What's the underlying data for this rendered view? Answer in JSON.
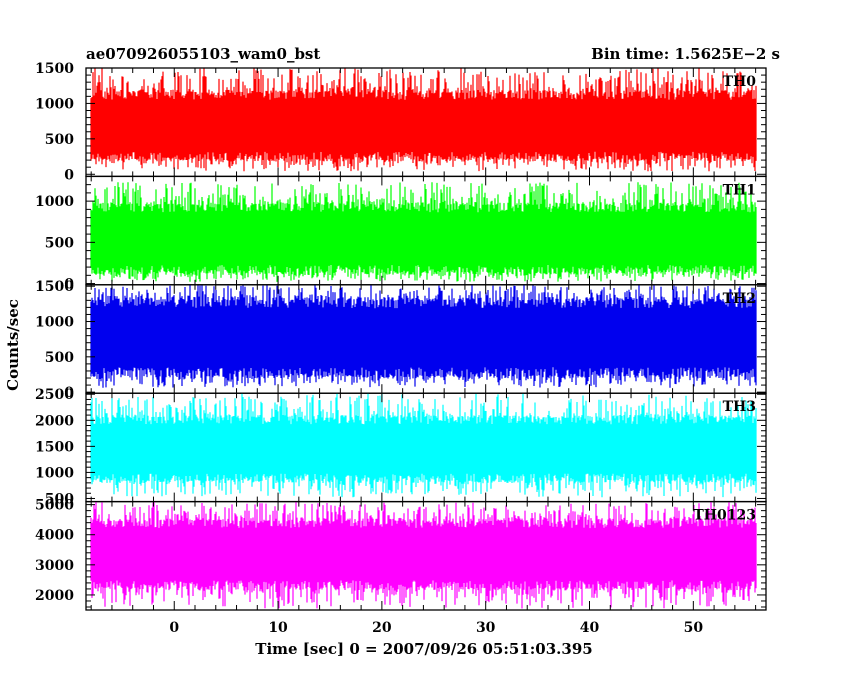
{
  "chart_data": {
    "type": "line",
    "title": "ae070926055103_wam0_bst",
    "subtitle": "Bin time: 1.5625E−2 s",
    "xlabel": "Time [sec] 0 = 2007/09/26 05:51:03.395",
    "ylabel": "Counts/sec",
    "xlim": [
      -8.5,
      57
    ],
    "x_ticks": [
      0,
      10,
      20,
      30,
      40,
      50
    ],
    "x_data_range": [
      -8,
      56
    ],
    "bin_time_s": 0.015625,
    "grid": false,
    "legend": "none",
    "panels": [
      {
        "name": "TH0",
        "color": "#ff0000",
        "ylim": [
          -30,
          1500
        ],
        "y_ticks": [
          0,
          500,
          1000,
          1500
        ],
        "typical_range": [
          220,
          1150
        ],
        "extreme_range": [
          40,
          1500
        ]
      },
      {
        "name": "TH1",
        "color": "#00ff00",
        "ylim": [
          -15,
          1300
        ],
        "y_ticks": [
          0,
          500,
          1000
        ],
        "typical_range": [
          140,
          950
        ],
        "extreme_range": [
          20,
          1230
        ]
      },
      {
        "name": "TH2",
        "color": "#0000ee",
        "ylim": [
          -15,
          1520
        ],
        "y_ticks": [
          0,
          500,
          1000,
          1500
        ],
        "typical_range": [
          240,
          1300
        ],
        "extreme_range": [
          60,
          1520
        ]
      },
      {
        "name": "TH3",
        "color": "#00ffff",
        "ylim": [
          440,
          2520
        ],
        "y_ticks": [
          500,
          1000,
          1500,
          2000,
          2500
        ],
        "typical_range": [
          850,
          2050
        ],
        "extreme_range": [
          520,
          2520
        ]
      },
      {
        "name": "TH0123",
        "color": "#ff00ff",
        "ylim": [
          1500,
          5100
        ],
        "y_ticks": [
          2000,
          3000,
          4000,
          5000
        ],
        "typical_range": [
          2250,
          4450
        ],
        "extreme_range": [
          1550,
          5100
        ]
      }
    ]
  }
}
